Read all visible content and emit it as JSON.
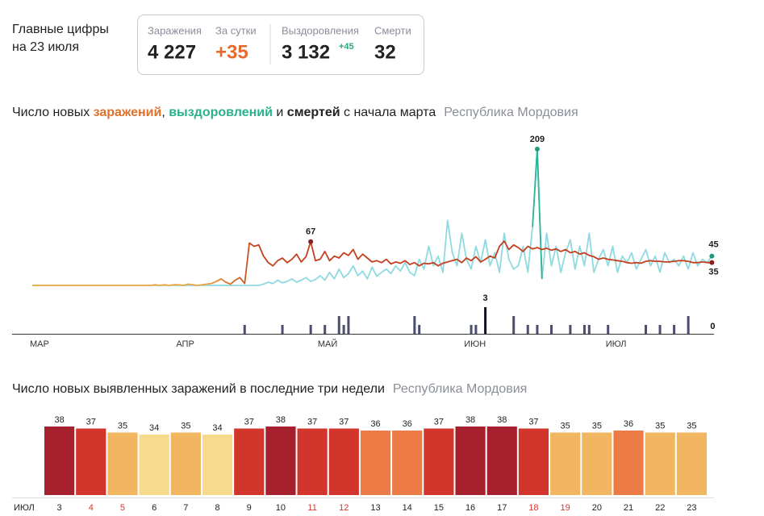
{
  "header": {
    "title_lines": [
      "Главные цифры",
      "на 23 июля"
    ],
    "stats": [
      {
        "label": "Заражения",
        "value": "4 227"
      },
      {
        "label": "За сутки",
        "value": "+35"
      },
      {
        "label": "Выздоровления",
        "value": "3 132",
        "delta": "+45"
      },
      {
        "label": "Смерти",
        "value": "32"
      }
    ]
  },
  "chart_data": [
    {
      "type": "line",
      "title_parts": [
        "Число новых ",
        "заражений",
        ", ",
        "выздоровлений",
        " и ",
        "смертей",
        " с начала марта"
      ],
      "subtitle": "Республика Мордовия",
      "categories": [
        "МАР",
        null,
        null,
        null,
        null,
        null,
        null,
        null,
        null,
        null,
        null,
        null,
        null,
        null,
        null,
        null,
        null,
        null,
        null,
        null,
        null,
        null,
        null,
        null,
        null,
        null,
        null,
        null,
        null,
        null,
        null,
        "АПР",
        null,
        null,
        null,
        null,
        null,
        null,
        null,
        null,
        null,
        null,
        null,
        null,
        null,
        null,
        null,
        null,
        null,
        null,
        null,
        null,
        null,
        null,
        null,
        null,
        null,
        null,
        null,
        null,
        null,
        "МАЙ",
        null,
        null,
        null,
        null,
        null,
        null,
        null,
        null,
        null,
        null,
        null,
        null,
        null,
        null,
        null,
        null,
        null,
        null,
        null,
        null,
        null,
        null,
        null,
        null,
        null,
        null,
        null,
        null,
        null,
        null,
        "ИЮН",
        null,
        null,
        null,
        null,
        null,
        null,
        null,
        null,
        null,
        null,
        null,
        null,
        null,
        null,
        null,
        null,
        null,
        null,
        null,
        null,
        null,
        null,
        null,
        null,
        null,
        null,
        null,
        null,
        null,
        "ИЮЛ",
        null,
        null,
        null,
        null,
        null,
        null,
        null,
        null,
        null,
        null,
        null,
        null,
        null,
        null,
        null,
        null,
        null,
        null,
        null,
        null,
        null,
        null
      ],
      "ylim": [
        0,
        220
      ],
      "y2lim": [
        0,
        3
      ],
      "series": [
        {
          "name": "заражений",
          "color": "#c3401f",
          "color_start": "#f0a743",
          "values": [
            0,
            0,
            0,
            0,
            0,
            0,
            0,
            0,
            0,
            0,
            0,
            0,
            0,
            0,
            0,
            0,
            0,
            0,
            0,
            0,
            0,
            0,
            0,
            0,
            0,
            0,
            1,
            0,
            1,
            0,
            1,
            1,
            0,
            2,
            1,
            0,
            1,
            2,
            3,
            6,
            10,
            5,
            2,
            8,
            12,
            3,
            65,
            60,
            62,
            45,
            35,
            30,
            38,
            42,
            35,
            40,
            48,
            36,
            44,
            67,
            38,
            40,
            52,
            38,
            45,
            42,
            50,
            46,
            55,
            40,
            48,
            42,
            36,
            38,
            35,
            40,
            33,
            36,
            34,
            38,
            32,
            35,
            30,
            34,
            33,
            35,
            30,
            34,
            36,
            38,
            40,
            35,
            42,
            38,
            44,
            36,
            40,
            45,
            42,
            60,
            68,
            55,
            62,
            58,
            52,
            60,
            56,
            58,
            55,
            57,
            54,
            56,
            52,
            55,
            50,
            52,
            48,
            50,
            46,
            44,
            40,
            42,
            40,
            39,
            38,
            37,
            35,
            34,
            35,
            34,
            37,
            38,
            37,
            37,
            36,
            36,
            37,
            38,
            38,
            37,
            35,
            35,
            36,
            35,
            35
          ],
          "labeled": [
            59,
            144
          ],
          "label_color": "#8b1e22"
        },
        {
          "name": "выздоровлений",
          "color": "#8fd9e0",
          "color_peak": "#2bb597",
          "values": [
            0,
            0,
            0,
            0,
            0,
            0,
            0,
            0,
            0,
            0,
            0,
            0,
            0,
            0,
            0,
            0,
            0,
            0,
            0,
            0,
            0,
            0,
            0,
            0,
            0,
            0,
            0,
            0,
            0,
            0,
            0,
            0,
            0,
            0,
            0,
            0,
            0,
            0,
            0,
            0,
            0,
            0,
            0,
            0,
            0,
            0,
            0,
            0,
            0,
            2,
            5,
            3,
            8,
            4,
            6,
            10,
            5,
            8,
            12,
            6,
            9,
            15,
            8,
            20,
            10,
            25,
            12,
            18,
            30,
            15,
            22,
            10,
            28,
            14,
            20,
            25,
            18,
            30,
            22,
            35,
            20,
            15,
            40,
            25,
            60,
            30,
            45,
            20,
            100,
            50,
            30,
            80,
            40,
            25,
            60,
            35,
            70,
            30,
            50,
            20,
            80,
            40,
            25,
            30,
            60,
            20,
            90,
            209,
            10,
            80,
            30,
            60,
            20,
            50,
            70,
            25,
            60,
            30,
            80,
            20,
            40,
            55,
            30,
            60,
            20,
            45,
            35,
            50,
            25,
            40,
            55,
            30,
            45,
            20,
            50,
            35,
            40,
            30,
            45,
            25,
            50,
            30,
            40,
            35,
            45
          ],
          "labeled": [
            107,
            144
          ],
          "label_color": "#1f9a7c"
        },
        {
          "name": "смертей",
          "color": "#4b4e6e",
          "color_peak": "#111122",
          "axis": "y2",
          "values": [
            0,
            0,
            0,
            0,
            0,
            0,
            0,
            0,
            0,
            0,
            0,
            0,
            0,
            0,
            0,
            0,
            0,
            0,
            0,
            0,
            0,
            0,
            0,
            0,
            0,
            0,
            0,
            0,
            0,
            0,
            0,
            0,
            0,
            0,
            0,
            0,
            0,
            0,
            0,
            0,
            0,
            0,
            0,
            0,
            0,
            1,
            0,
            0,
            0,
            0,
            0,
            0,
            0,
            1,
            0,
            0,
            0,
            0,
            0,
            1,
            0,
            0,
            1,
            0,
            0,
            2,
            1,
            2,
            0,
            0,
            0,
            0,
            0,
            0,
            0,
            0,
            0,
            0,
            0,
            0,
            0,
            2,
            1,
            0,
            0,
            0,
            0,
            0,
            0,
            0,
            0,
            0,
            0,
            1,
            1,
            0,
            3,
            0,
            0,
            0,
            0,
            0,
            2,
            0,
            0,
            1,
            0,
            1,
            0,
            0,
            1,
            0,
            0,
            0,
            1,
            0,
            0,
            1,
            1,
            0,
            0,
            0,
            1,
            0,
            0,
            0,
            0,
            0,
            0,
            0,
            1,
            0,
            0,
            1,
            0,
            0,
            1,
            0,
            0,
            2,
            0,
            0,
            0,
            0,
            0
          ],
          "labeled": [
            96,
            144
          ],
          "label_color": "#111111"
        }
      ]
    },
    {
      "type": "bar",
      "title": "Число новых выявленных заражений в последние три недели",
      "subtitle": "Республика Мордовия",
      "month_label": "ИЮЛ",
      "categories": [
        "3",
        "4",
        "5",
        "6",
        "7",
        "8",
        "9",
        "10",
        "11",
        "12",
        "13",
        "14",
        "15",
        "16",
        "17",
        "18",
        "19",
        "20",
        "21",
        "22",
        "23"
      ],
      "values": [
        38,
        37,
        35,
        34,
        35,
        34,
        37,
        38,
        37,
        37,
        36,
        36,
        37,
        38,
        38,
        37,
        35,
        35,
        36,
        35,
        35
      ],
      "colors": [
        "#a51f2d",
        "#d2352b",
        "#f2b661",
        "#f7da8b",
        "#f2b661",
        "#f7da8b",
        "#d2352b",
        "#a51f2d",
        "#d2352b",
        "#d2352b",
        "#ec7b46",
        "#ec7b46",
        "#d2352b",
        "#a51f2d",
        "#a51f2d",
        "#d2352b",
        "#f2b661",
        "#f2b661",
        "#ec7b46",
        "#f2b661",
        "#f2b661"
      ],
      "label_colors": [
        "#222",
        "#d9342b",
        "#d9342b",
        "#222",
        "#222",
        "#222",
        "#222",
        "#222",
        "#d9342b",
        "#d9342b",
        "#222",
        "#222",
        "#222",
        "#222",
        "#222",
        "#d9342b",
        "#d9342b",
        "#222",
        "#222",
        "#222",
        "#222"
      ],
      "ylim": [
        4,
        40
      ]
    }
  ]
}
